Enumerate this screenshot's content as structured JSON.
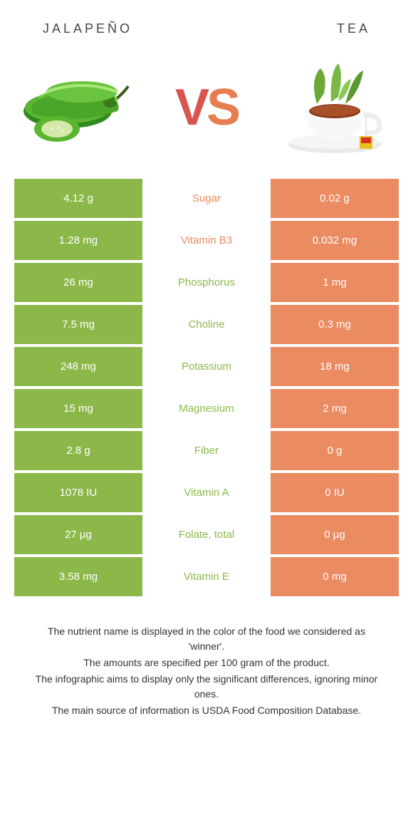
{
  "header": {
    "left_title": "JALAPEÑO",
    "right_title": "TEA"
  },
  "vs": {
    "v": "V",
    "s": "S"
  },
  "colors": {
    "jalapeno": "#8cb849",
    "tea": "#ea8b61",
    "nutrient_jalapeno": "#8cb849",
    "nutrient_tea": "#ea8b61",
    "row_gap": "#ffffff"
  },
  "table": {
    "left_color": "#8cb849",
    "right_color": "#ea8b61",
    "rows": [
      {
        "left": "4.12 g",
        "mid": "Sugar",
        "mid_color": "#ea8b61",
        "right": "0.02 g"
      },
      {
        "left": "1.28 mg",
        "mid": "Vitamin B3",
        "mid_color": "#ea8b61",
        "right": "0.032 mg"
      },
      {
        "left": "26 mg",
        "mid": "Phosphorus",
        "mid_color": "#8cb849",
        "right": "1 mg"
      },
      {
        "left": "7.5 mg",
        "mid": "Choline",
        "mid_color": "#8cb849",
        "right": "0.3 mg"
      },
      {
        "left": "248 mg",
        "mid": "Potassium",
        "mid_color": "#8cb849",
        "right": "18 mg"
      },
      {
        "left": "15 mg",
        "mid": "Magnesium",
        "mid_color": "#8cb849",
        "right": "2 mg"
      },
      {
        "left": "2.8 g",
        "mid": "Fiber",
        "mid_color": "#8cb849",
        "right": "0 g"
      },
      {
        "left": "1078 IU",
        "mid": "Vitamin A",
        "mid_color": "#8cb849",
        "right": "0 IU"
      },
      {
        "left": "27 µg",
        "mid": "Folate, total",
        "mid_color": "#8cb849",
        "right": "0 µg"
      },
      {
        "left": "3.58 mg",
        "mid": "Vitamin E",
        "mid_color": "#8cb849",
        "right": "0 mg"
      }
    ]
  },
  "footer": {
    "lines": [
      "The nutrient name is displayed in the color of the food we considered as 'winner'.",
      "The amounts are specified per 100 gram of the product.",
      "The infographic aims to display only the significant differences, ignoring minor ones.",
      "The main source of information is USDA Food Composition Database."
    ]
  }
}
